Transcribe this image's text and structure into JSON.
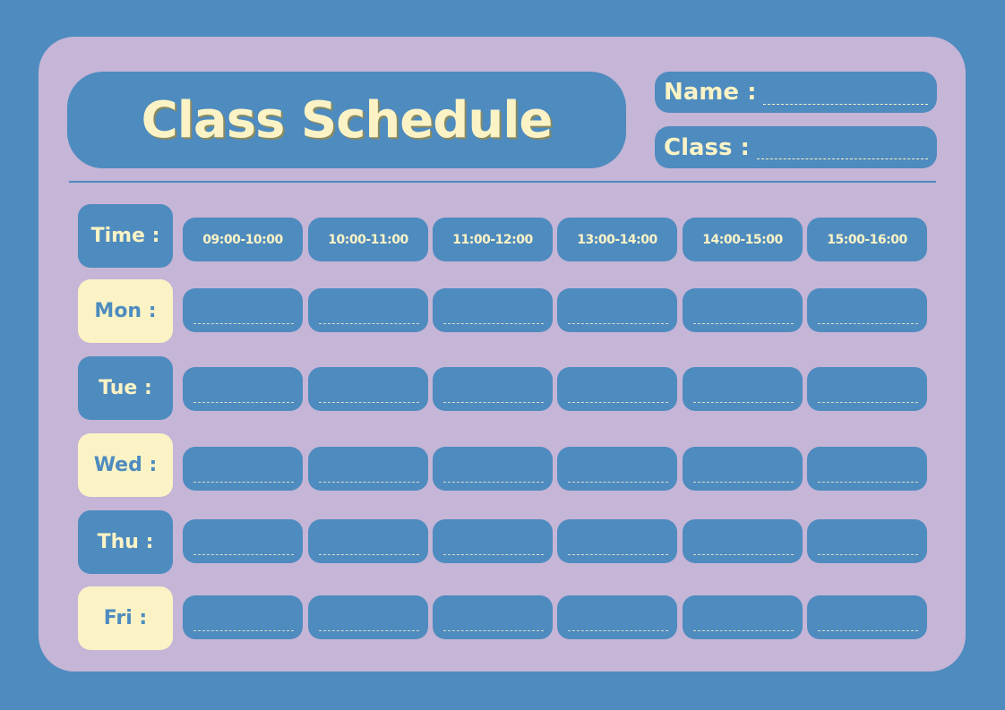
{
  "title": "Class Schedule",
  "fields": {
    "name_label": "Name :",
    "class_label": "Class :"
  },
  "time_label": "Time :",
  "time_slots": [
    "09:00-10:00",
    "10:00-11:00",
    "11:00-12:00",
    "13:00-14:00",
    "14:00-15:00",
    "15:00-16:00"
  ],
  "days": [
    "Mon :",
    "Tue :",
    "Wed :",
    "Thu :",
    "Fri :"
  ],
  "colors": {
    "background": "#4e8bbf",
    "card": "#c5b5d6",
    "accent": "#fbf3c5"
  }
}
